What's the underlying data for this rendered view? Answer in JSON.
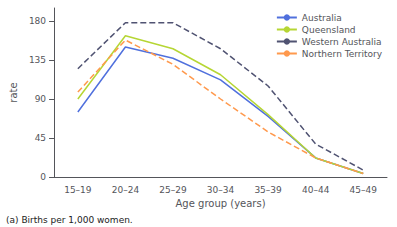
{
  "chart_data": {
    "type": "line",
    "xlabel": "Age group (years)",
    "ylabel": "rate",
    "annotations": [
      "(a) Births per 1,000 women."
    ],
    "categories": [
      "15–19",
      "20–24",
      "25–29",
      "30–34",
      "35–39",
      "40–44",
      "45–49"
    ],
    "series": [
      {
        "name": "Australia",
        "values": [
          75,
          150,
          137,
          112,
          70,
          22,
          4
        ],
        "line_style": "solid"
      },
      {
        "name": "Queensland",
        "values": [
          90,
          163,
          148,
          118,
          72,
          22,
          4
        ],
        "line_style": "solid"
      },
      {
        "name": "Western Australia",
        "values": [
          125,
          178,
          178,
          148,
          105,
          38,
          8
        ],
        "line_style": "dashed"
      },
      {
        "name": "Northern Territory",
        "values": [
          98,
          158,
          130,
          90,
          52,
          22,
          4
        ],
        "line_style": "dashed"
      }
    ],
    "ylim": [
      0,
      195
    ],
    "yticks": [
      0,
      45,
      90,
      135,
      180
    ],
    "grid": false,
    "legend": "upper right"
  }
}
